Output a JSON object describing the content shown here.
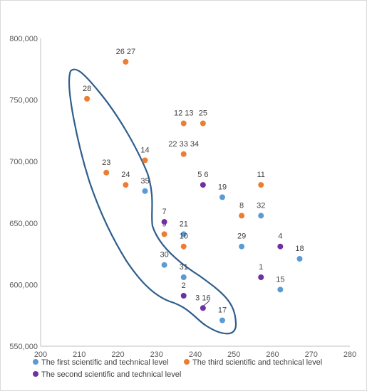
{
  "chart_data": {
    "type": "scatter",
    "xlim": [
      200,
      280
    ],
    "ylim": [
      550000,
      800000
    ],
    "xticks": [
      "200",
      "210",
      "220",
      "230",
      "240",
      "250",
      "260",
      "270",
      "280"
    ],
    "yticks": [
      "550,000",
      "600,000",
      "650,000",
      "700,000",
      "750,000",
      "800,000"
    ],
    "grid": false,
    "legend_placement": "bottom",
    "series": [
      {
        "name": "The first scientific and technical level",
        "color": "#5b9bd5",
        "points": [
          {
            "x": 227,
            "y": 676000,
            "label": "35"
          },
          {
            "x": 237,
            "y": 641000,
            "label": "21"
          },
          {
            "x": 232,
            "y": 616000,
            "label": "30"
          },
          {
            "x": 237,
            "y": 606000,
            "label": "31"
          },
          {
            "x": 247,
            "y": 571000,
            "label": "17"
          },
          {
            "x": 247,
            "y": 671000,
            "label": "19"
          },
          {
            "x": 252,
            "y": 631000,
            "label": "29"
          },
          {
            "x": 257,
            "y": 656000,
            "label": "32"
          },
          {
            "x": 262,
            "y": 596000,
            "label": "15"
          },
          {
            "x": 267,
            "y": 621000,
            "label": "18"
          }
        ]
      },
      {
        "name": "The third scientific and technical level",
        "color": "#ed7d31",
        "points": [
          {
            "x": 222,
            "y": 781000,
            "label": "26 27"
          },
          {
            "x": 212,
            "y": 751000,
            "label": "28"
          },
          {
            "x": 237,
            "y": 731000,
            "label": "12 13"
          },
          {
            "x": 242,
            "y": 731000,
            "label": "25"
          },
          {
            "x": 237,
            "y": 706000,
            "label": "22 33 34"
          },
          {
            "x": 227,
            "y": 701000,
            "label": "14"
          },
          {
            "x": 217,
            "y": 691000,
            "label": "23"
          },
          {
            "x": 222,
            "y": 681000,
            "label": "24"
          },
          {
            "x": 257,
            "y": 681000,
            "label": "11"
          },
          {
            "x": 252,
            "y": 656000,
            "label": "8"
          },
          {
            "x": 232,
            "y": 641000,
            "label": "9"
          },
          {
            "x": 237,
            "y": 631000,
            "label": "10"
          }
        ]
      },
      {
        "name": "The second scientific and technical level",
        "color": "#7030a0",
        "points": [
          {
            "x": 242,
            "y": 681000,
            "label": "5 6"
          },
          {
            "x": 232,
            "y": 651000,
            "label": "7"
          },
          {
            "x": 262,
            "y": 631000,
            "label": "4"
          },
          {
            "x": 257,
            "y": 606000,
            "label": "1"
          },
          {
            "x": 237,
            "y": 591000,
            "label": "2"
          },
          {
            "x": 242,
            "y": 581000,
            "label": "3 16"
          }
        ]
      }
    ],
    "annotations": [
      {
        "type": "outline",
        "description": "closed curve enclosing points 28, 23, 24, 14, 35, 7, 9, 21, 10, 30, 31, 2, 3, 16, 17",
        "color": "#2e5e8c"
      }
    ]
  }
}
